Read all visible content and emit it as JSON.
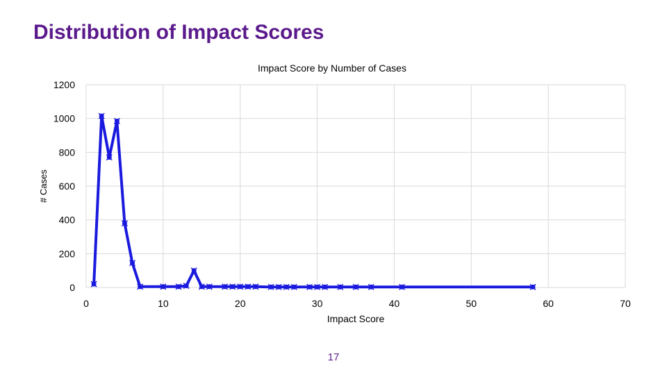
{
  "slide": {
    "title": "Distribution of Impact Scores",
    "page_number": "17"
  },
  "colors": {
    "title": "#5b1a8c",
    "series": "#1a1adf",
    "grid": "#d9d9d9"
  },
  "chart_data": {
    "type": "line",
    "title": "Impact Score by Number of Cases",
    "xlabel": "Impact Score",
    "ylabel": "# Cases",
    "xlim": [
      0,
      70
    ],
    "ylim": [
      0,
      1200
    ],
    "xticks": [
      0,
      10,
      20,
      30,
      40,
      50,
      60,
      70
    ],
    "yticks": [
      0,
      200,
      400,
      600,
      800,
      1000,
      1200
    ],
    "grid": true,
    "legend": "none",
    "series": [
      {
        "marker": "x",
        "x": [
          1,
          2,
          3,
          4,
          5,
          6,
          7,
          10,
          12,
          13,
          14,
          15,
          16,
          18,
          19,
          20,
          21,
          22,
          24,
          25,
          26,
          27,
          29,
          30,
          31,
          33,
          35,
          37,
          41,
          58
        ],
        "y": [
          20,
          1015,
          770,
          985,
          380,
          145,
          5,
          5,
          5,
          10,
          100,
          5,
          5,
          5,
          5,
          5,
          5,
          5,
          3,
          3,
          3,
          3,
          3,
          3,
          3,
          3,
          3,
          3,
          3,
          3
        ]
      }
    ]
  }
}
